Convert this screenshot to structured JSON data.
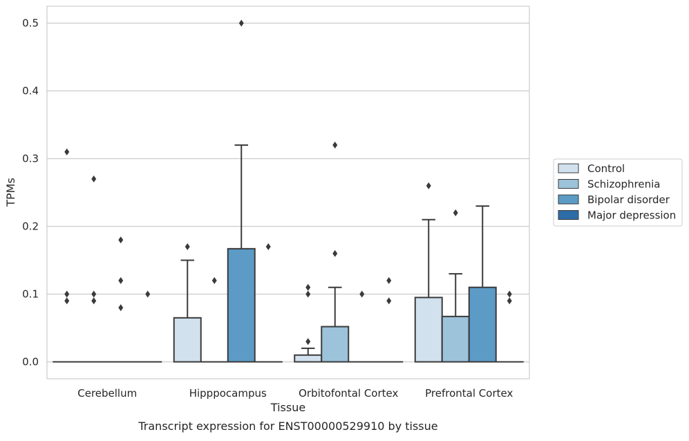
{
  "chart_data": {
    "type": "box",
    "title": "",
    "caption": "Transcript expression for ENST00000529910 by tissue",
    "xlabel": "Tissue",
    "ylabel": "TPMs",
    "ylim": [
      -0.025,
      0.525
    ],
    "yticks": [
      0.0,
      0.1,
      0.2,
      0.3,
      0.4,
      0.5
    ],
    "ytick_labels": [
      "0.0",
      "0.1",
      "0.2",
      "0.3",
      "0.4",
      "0.5"
    ],
    "grid": "horizontal",
    "legend_position": "right",
    "categories": [
      "Cerebellum",
      "Hipppocampus",
      "Orbitofontal Cortex",
      "Prefrontal Cortex"
    ],
    "series": [
      {
        "name": "Control",
        "color": "#d1e1ee",
        "boxes": [
          {
            "q1": 0,
            "median": 0,
            "q3": 0,
            "whisker_low": 0,
            "whisker_high": 0,
            "outliers": [
              0.31,
              0.1,
              0.09
            ]
          },
          {
            "q1": 0,
            "median": 0,
            "q3": 0.065,
            "whisker_low": 0,
            "whisker_high": 0.15,
            "outliers": [
              0.17
            ]
          },
          {
            "q1": 0,
            "median": 0,
            "q3": 0.01,
            "whisker_low": 0,
            "whisker_high": 0.02,
            "outliers": [
              0.11,
              0.1,
              0.03
            ]
          },
          {
            "q1": 0,
            "median": 0,
            "q3": 0.095,
            "whisker_low": 0,
            "whisker_high": 0.21,
            "outliers": [
              0.26
            ]
          }
        ]
      },
      {
        "name": "Schizophrenia",
        "color": "#9cc3da",
        "boxes": [
          {
            "q1": 0,
            "median": 0,
            "q3": 0,
            "whisker_low": 0,
            "whisker_high": 0,
            "outliers": [
              0.27,
              0.1,
              0.09
            ]
          },
          {
            "q1": 0,
            "median": 0,
            "q3": 0,
            "whisker_low": 0,
            "whisker_high": 0,
            "outliers": [
              0.12
            ]
          },
          {
            "q1": 0,
            "median": 0,
            "q3": 0.052,
            "whisker_low": 0,
            "whisker_high": 0.11,
            "outliers": [
              0.32,
              0.16
            ]
          },
          {
            "q1": 0,
            "median": 0,
            "q3": 0.067,
            "whisker_low": 0,
            "whisker_high": 0.13,
            "outliers": [
              0.22
            ]
          }
        ]
      },
      {
        "name": "Bipolar disorder",
        "color": "#5b9bc6",
        "boxes": [
          {
            "q1": 0,
            "median": 0,
            "q3": 0,
            "whisker_low": 0,
            "whisker_high": 0,
            "outliers": [
              0.18,
              0.12,
              0.08
            ]
          },
          {
            "q1": 0,
            "median": 0,
            "q3": 0.167,
            "whisker_low": 0,
            "whisker_high": 0.32,
            "outliers": [
              0.5
            ]
          },
          {
            "q1": 0,
            "median": 0,
            "q3": 0,
            "whisker_low": 0,
            "whisker_high": 0,
            "outliers": [
              0.1
            ]
          },
          {
            "q1": 0,
            "median": 0,
            "q3": 0.11,
            "whisker_low": 0,
            "whisker_high": 0.23,
            "outliers": []
          }
        ]
      },
      {
        "name": "Major depression",
        "color": "#2d6da7",
        "boxes": [
          {
            "q1": 0,
            "median": 0,
            "q3": 0,
            "whisker_low": 0,
            "whisker_high": 0,
            "outliers": [
              0.1
            ]
          },
          {
            "q1": 0,
            "median": 0,
            "q3": 0,
            "whisker_low": 0,
            "whisker_high": 0,
            "outliers": [
              0.17
            ]
          },
          {
            "q1": 0,
            "median": 0,
            "q3": 0,
            "whisker_low": 0,
            "whisker_high": 0,
            "outliers": [
              0.12,
              0.09
            ]
          },
          {
            "q1": 0,
            "median": 0,
            "q3": 0,
            "whisker_low": 0,
            "whisker_high": 0,
            "outliers": [
              0.1,
              0.09
            ]
          }
        ]
      }
    ]
  }
}
